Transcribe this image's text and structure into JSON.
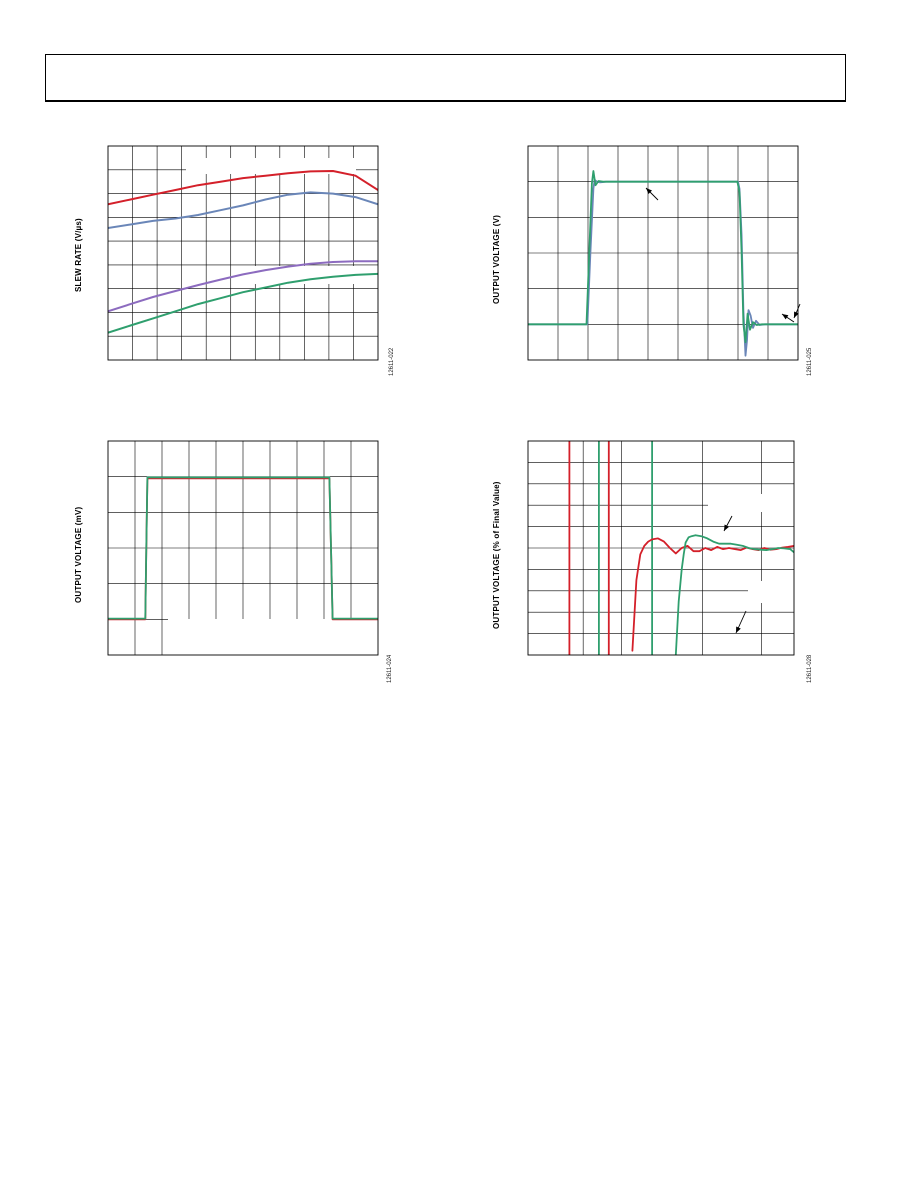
{
  "page": {
    "colors": {
      "red": "#d4202a",
      "blue": "#6a86b8",
      "purple": "#8c6bbf",
      "green": "#2f9f6e",
      "grid": "#000000"
    }
  },
  "chart_data": [
    {
      "id": "slew-rate",
      "type": "line",
      "ylabel": "SLEW RATE (V/µs)",
      "fig_id": "12611-022",
      "x": [
        0,
        1,
        2,
        3,
        4,
        5,
        6,
        7,
        8,
        9,
        10,
        11,
        12
      ],
      "ylim": [
        0,
        9
      ],
      "grid": {
        "xdiv": 11,
        "ydiv": 9
      },
      "series": [
        {
          "color": "red",
          "values": [
            6.55,
            6.75,
            6.95,
            7.15,
            7.35,
            7.5,
            7.65,
            7.75,
            7.85,
            7.93,
            7.95,
            7.75,
            7.15
          ]
        },
        {
          "color": "blue",
          "values": [
            5.55,
            5.7,
            5.85,
            5.95,
            6.1,
            6.3,
            6.5,
            6.75,
            6.95,
            7.05,
            7.0,
            6.85,
            6.55
          ]
        },
        {
          "color": "purple",
          "values": [
            2.05,
            2.35,
            2.65,
            2.9,
            3.15,
            3.38,
            3.6,
            3.78,
            3.93,
            4.05,
            4.12,
            4.15,
            4.15
          ]
        },
        {
          "color": "green",
          "values": [
            1.15,
            1.45,
            1.75,
            2.05,
            2.35,
            2.6,
            2.85,
            3.05,
            3.25,
            3.4,
            3.5,
            3.58,
            3.62
          ]
        }
      ]
    },
    {
      "id": "large-signal-pulse",
      "type": "line",
      "ylabel": "OUTPUT VOLTAGE (V)",
      "fig_id": "12611-025",
      "xlim": [
        0,
        9
      ],
      "ylim": [
        0,
        6
      ],
      "grid": {
        "xdiv": 9,
        "ydiv": 6
      },
      "series": [
        {
          "color": "blue",
          "x": [
            0,
            1.98,
            2.08,
            2.18,
            2.22,
            2.3,
            2.4,
            2.6,
            7.0,
            7.05,
            7.12,
            7.18,
            7.25,
            7.3,
            7.35,
            7.42,
            7.5,
            7.6,
            7.72,
            7.9,
            9.0
          ],
          "values": [
            1.0,
            1.0,
            3.0,
            4.8,
            5.05,
            5.0,
            4.98,
            5.0,
            5.0,
            4.8,
            3.5,
            1.4,
            0.12,
            0.55,
            1.4,
            1.25,
            0.9,
            1.1,
            0.98,
            1.0,
            1.0
          ]
        },
        {
          "color": "green",
          "x": [
            0,
            1.95,
            2.05,
            2.13,
            2.18,
            2.25,
            2.35,
            2.5,
            6.98,
            7.05,
            7.12,
            7.18,
            7.25,
            7.32,
            7.4,
            7.5,
            7.62,
            7.8,
            9.0
          ],
          "values": [
            1.0,
            1.0,
            3.2,
            4.95,
            5.3,
            4.9,
            5.02,
            5.0,
            5.0,
            4.7,
            3.0,
            1.0,
            0.5,
            1.3,
            0.85,
            1.06,
            0.98,
            1.0,
            1.0
          ]
        }
      ]
    },
    {
      "id": "small-signal-pulse",
      "type": "line",
      "ylabel": "OUTPUT VOLTAGE (mV)",
      "fig_id": "12611-024",
      "xlim": [
        0,
        10
      ],
      "ylim": [
        0,
        6
      ],
      "grid": {
        "xdiv": 10,
        "ydiv": 6
      },
      "series": [
        {
          "color": "red",
          "x": [
            0,
            1.38,
            1.42,
            1.46,
            8.2,
            8.26,
            8.32,
            10.0
          ],
          "values": [
            1.0,
            1.0,
            3.0,
            4.95,
            4.95,
            3.0,
            1.0,
            1.0
          ]
        },
        {
          "color": "green",
          "x": [
            0,
            1.38,
            1.42,
            1.46,
            8.2,
            8.26,
            8.32,
            10.0
          ],
          "values": [
            1.02,
            1.02,
            3.0,
            4.98,
            4.98,
            3.0,
            1.02,
            1.02
          ]
        }
      ]
    },
    {
      "id": "settling-time",
      "type": "line",
      "ylabel": "OUTPUT VOLTAGE (% of Final Value)",
      "fig_id": "12611-028",
      "xlim": [
        0,
        270
      ],
      "ylim": [
        0,
        10
      ],
      "grid": {
        "xdiv": 10,
        "ydiv": 10,
        "x_custom": [
          56,
          82,
          95,
          126,
          177,
          237
        ]
      },
      "series": [
        {
          "color": "red",
          "x": [
            42,
            42,
            42,
            42
          ],
          "values": [
            -1,
            12,
            12,
            -1
          ]
        },
        {
          "color": "red",
          "x": [
            82,
            82
          ],
          "values": [
            12,
            -1
          ]
        },
        {
          "color": "green",
          "x": [
            72,
            72
          ],
          "values": [
            -1,
            12
          ]
        },
        {
          "color": "green",
          "x": [
            126,
            126
          ],
          "values": [
            12,
            -1
          ]
        },
        {
          "color": "red",
          "x": [
            106,
            110,
            114,
            118,
            122,
            126,
            132,
            138,
            144,
            150,
            156,
            162,
            168,
            174,
            180,
            186,
            192,
            198,
            204,
            210,
            216,
            222,
            228,
            234,
            240,
            246,
            252,
            258,
            264,
            270
          ],
          "values": [
            0.2,
            3.5,
            4.7,
            5.1,
            5.3,
            5.4,
            5.45,
            5.3,
            5.0,
            4.75,
            5.0,
            5.1,
            4.85,
            4.85,
            5.0,
            4.9,
            5.05,
            4.95,
            5.0,
            4.95,
            4.9,
            5.02,
            4.95,
            4.9,
            5.0,
            4.92,
            4.95,
            5.02,
            5.05,
            5.1
          ]
        },
        {
          "color": "green",
          "x": [
            150,
            153,
            156,
            158,
            160,
            163,
            166,
            170,
            176,
            182,
            188,
            194,
            200,
            206,
            212,
            218,
            224,
            230,
            236,
            242,
            248,
            254,
            260,
            266,
            270
          ],
          "values": [
            0.0,
            2.5,
            4.0,
            4.7,
            5.25,
            5.5,
            5.55,
            5.6,
            5.55,
            5.45,
            5.3,
            5.2,
            5.2,
            5.2,
            5.15,
            5.1,
            5.0,
            4.95,
            4.92,
            4.9,
            4.95,
            5.0,
            4.98,
            4.95,
            4.8
          ]
        }
      ]
    }
  ]
}
